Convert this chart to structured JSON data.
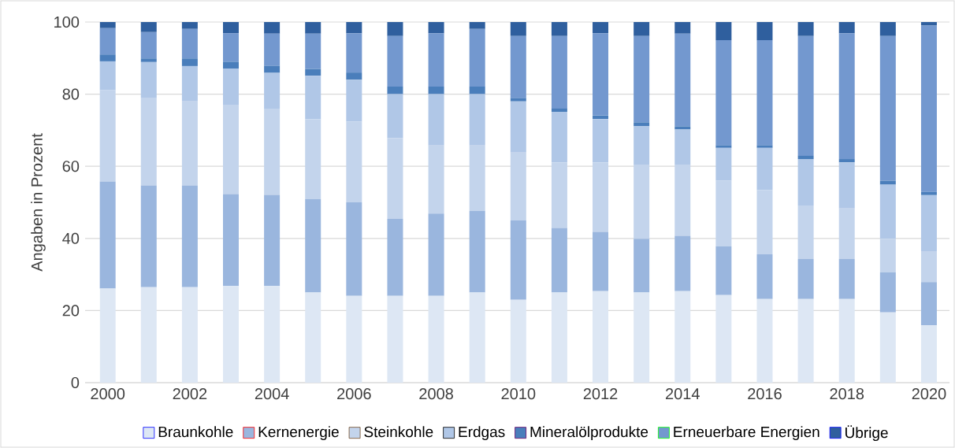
{
  "chart_data": {
    "type": "bar",
    "stacked": true,
    "ylabel": "Angaben in Prozent",
    "categories": [
      "2000",
      null,
      "2002",
      null,
      "2004",
      null,
      "2006",
      null,
      "2008",
      null,
      "2010",
      null,
      "2012",
      null,
      "2014",
      null,
      "2016",
      null,
      "2018",
      null,
      "2020"
    ],
    "ylim": [
      0,
      100
    ],
    "yticks": [
      0,
      20,
      40,
      60,
      80,
      100
    ],
    "grid": "y",
    "legend": "bottom",
    "series": [
      {
        "name": "Braunkohle",
        "color": "#dde7f4",
        "values": [
          26.1,
          26.5,
          26.5,
          26.8,
          26.8,
          25.0,
          24.1,
          24.1,
          24.1,
          25.0,
          23.0,
          25.0,
          25.4,
          25.0,
          25.4,
          24.3,
          23.2,
          23.2,
          23.2,
          19.5,
          15.9
        ]
      },
      {
        "name": "Kernenergie",
        "color": "#9ab6de",
        "values": [
          29.7,
          28.2,
          28.2,
          25.5,
          25.3,
          25.9,
          25.9,
          21.3,
          22.8,
          22.6,
          22.0,
          17.9,
          16.4,
          14.9,
          15.3,
          13.5,
          12.4,
          11.1,
          11.1,
          11.1,
          12.0
        ]
      },
      {
        "name": "Steinkohle",
        "color": "#c3d4ec",
        "values": [
          25.3,
          24.2,
          23.3,
          24.8,
          23.9,
          22.2,
          22.4,
          22.4,
          18.9,
          18.2,
          18.8,
          18.2,
          19.3,
          20.4,
          19.6,
          18.2,
          17.8,
          14.8,
          14.0,
          9.3,
          8.4
        ]
      },
      {
        "name": "Erdgas",
        "color": "#b0c7e7",
        "values": [
          8.0,
          10.0,
          9.8,
          10.0,
          9.9,
          12.0,
          11.6,
          12.2,
          14.2,
          14.2,
          14.2,
          14.0,
          12.0,
          10.8,
          9.9,
          9.1,
          11.7,
          12.9,
          12.8,
          15.0,
          15.7
        ]
      },
      {
        "name": "Mineralölprodukte",
        "color": "#4a7ebb",
        "values": [
          1.9,
          1.0,
          2.1,
          1.9,
          2.0,
          1.9,
          2.0,
          2.1,
          2.1,
          2.1,
          0.9,
          0.9,
          1.0,
          1.1,
          0.9,
          0.7,
          0.7,
          0.9,
          0.9,
          1.1,
          0.9
        ]
      },
      {
        "name": "Erneuerbare Energien",
        "color": "#7398cf",
        "values": [
          7.3,
          7.3,
          8.2,
          7.9,
          8.9,
          9.8,
          10.9,
          14.0,
          14.8,
          16.0,
          17.2,
          20.1,
          22.8,
          23.9,
          25.7,
          29.2,
          29.2,
          33.2,
          34.9,
          40.1,
          46.1
        ]
      },
      {
        "name": "Übrige",
        "color": "#2f5f9e",
        "values": [
          1.7,
          2.8,
          1.9,
          3.1,
          3.2,
          3.2,
          3.1,
          3.9,
          3.1,
          1.9,
          3.9,
          3.9,
          3.1,
          3.9,
          3.2,
          5.0,
          5.0,
          3.9,
          3.1,
          3.9,
          1.0
        ]
      }
    ]
  }
}
